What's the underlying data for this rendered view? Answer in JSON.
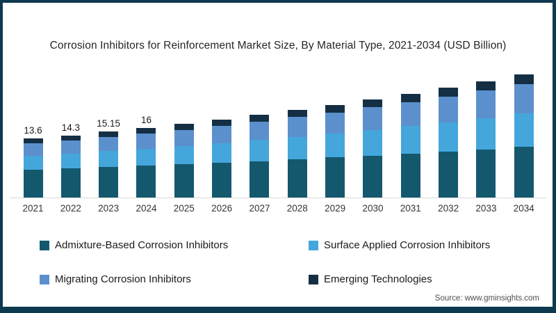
{
  "title": "Corrosion Inhibitors for Reinforcement Market Size, By Material Type, 2021-2034 (USD Billion)",
  "source": "Source: www.gminsights.com",
  "colors": {
    "admixture": "#14586e",
    "surface": "#45a6dc",
    "migrating": "#5c90cd",
    "emerging": "#142f44",
    "frame_border": "#0e3a50",
    "axis_line": "#d9d9d9",
    "title_text": "#262626",
    "label_text": "#1a1a1a"
  },
  "chart_data": {
    "type": "bar",
    "stacked": true,
    "title": "Corrosion Inhibitors for Reinforcement Market Size, By Material Type, 2021-2034 (USD Billion)",
    "xlabel": "",
    "ylabel": "",
    "ylim": [
      0,
      30
    ],
    "grid": false,
    "legend_position": "bottom",
    "categories": [
      "2021",
      "2022",
      "2023",
      "2024",
      "2025",
      "2026",
      "2027",
      "2028",
      "2029",
      "2030",
      "2031",
      "2032",
      "2033",
      "2034"
    ],
    "series": [
      {
        "name": "Admixture-Based Corrosion Inhibitors",
        "color_key": "admixture",
        "values": [
          6.39,
          6.66,
          6.98,
          7.3,
          7.65,
          8.02,
          8.4,
          8.8,
          9.22,
          9.68,
          10.13,
          10.61,
          11.11,
          11.64
        ]
      },
      {
        "name": "Surface Applied Corrosion Inhibitors",
        "color_key": "surface",
        "values": [
          3.26,
          3.47,
          3.71,
          3.95,
          4.22,
          4.51,
          4.82,
          5.15,
          5.51,
          5.89,
          6.29,
          6.71,
          7.17,
          7.67
        ]
      },
      {
        "name": "Migrating Corrosion Inhibitors",
        "color_key": "migrating",
        "values": [
          2.86,
          3.04,
          3.25,
          3.47,
          3.72,
          3.98,
          4.25,
          4.55,
          4.87,
          5.22,
          5.57,
          5.96,
          6.37,
          6.82
        ]
      },
      {
        "name": "Emerging Technologies",
        "color_key": "emerging",
        "values": [
          1.09,
          1.14,
          1.21,
          1.28,
          1.36,
          1.44,
          1.52,
          1.61,
          1.7,
          1.81,
          1.91,
          2.02,
          2.14,
          2.27
        ]
      }
    ],
    "totals_shown_as_labels": [
      13.6,
      14.3,
      15.15,
      16
    ],
    "bar_labels": [
      "13.6",
      "14.3",
      "15.15",
      "16",
      "",
      "",
      "",
      "",
      "",
      "",
      "",
      "",
      "",
      ""
    ]
  },
  "legend": {
    "items": [
      {
        "label": "Admixture-Based Corrosion Inhibitors",
        "color_key": "admixture"
      },
      {
        "label": "Surface Applied Corrosion Inhibitors",
        "color_key": "surface"
      },
      {
        "label": "Migrating Corrosion Inhibitors",
        "color_key": "migrating"
      },
      {
        "label": "Emerging Technologies",
        "color_key": "emerging"
      }
    ]
  }
}
